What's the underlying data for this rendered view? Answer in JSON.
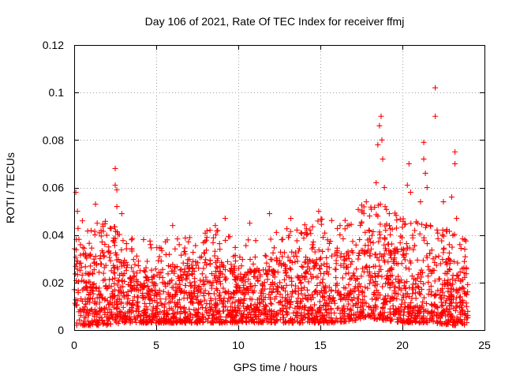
{
  "chart_data": {
    "type": "scatter",
    "title": "Day 106 of 2021, Rate Of TEC Index for receiver ffmj",
    "xlabel": "GPS time / hours",
    "ylabel": "ROTI / TECUs",
    "xlim": [
      0,
      25
    ],
    "ylim": [
      0,
      0.12
    ],
    "x_ticks": [
      "0",
      "5",
      "10",
      "15",
      "20",
      "25"
    ],
    "y_ticks": [
      "0",
      "0.02",
      "0.04",
      "0.06",
      "0.08",
      "0.1",
      "0.12"
    ],
    "x_tick_values": [
      0,
      5,
      10,
      15,
      20,
      25
    ],
    "y_tick_values": [
      0,
      0.02,
      0.04,
      0.06,
      0.08,
      0.1,
      0.12
    ],
    "grid": true,
    "marker": "+",
    "color": "#ff0000",
    "series": [
      {
        "name": "ROTI",
        "x_range": [
          0,
          24
        ],
        "description_points": [
          [
            0.1,
            0.058
          ],
          [
            0.2,
            0.05
          ],
          [
            0.5,
            0.046
          ],
          [
            1.3,
            0.053
          ],
          [
            1.4,
            0.045
          ],
          [
            2.5,
            0.068
          ],
          [
            2.5,
            0.061
          ],
          [
            2.6,
            0.059
          ],
          [
            2.6,
            0.052
          ],
          [
            2.9,
            0.049
          ],
          [
            3.5,
            0.038
          ],
          [
            6.0,
            0.044
          ],
          [
            8.6,
            0.044
          ],
          [
            9.2,
            0.047
          ],
          [
            10.7,
            0.045
          ],
          [
            11.9,
            0.049
          ],
          [
            13.2,
            0.047
          ],
          [
            14.9,
            0.05
          ],
          [
            16.2,
            0.044
          ],
          [
            17.5,
            0.045
          ],
          [
            17.8,
            0.054
          ],
          [
            18.0,
            0.048
          ],
          [
            18.4,
            0.062
          ],
          [
            18.5,
            0.078
          ],
          [
            18.6,
            0.086
          ],
          [
            18.7,
            0.09
          ],
          [
            18.75,
            0.08
          ],
          [
            18.8,
            0.072
          ],
          [
            18.9,
            0.06
          ],
          [
            19.2,
            0.049
          ],
          [
            20.3,
            0.061
          ],
          [
            20.4,
            0.07
          ],
          [
            20.5,
            0.058
          ],
          [
            21.1,
            0.054
          ],
          [
            21.3,
            0.079
          ],
          [
            21.3,
            0.072
          ],
          [
            21.4,
            0.066
          ],
          [
            21.5,
            0.06
          ],
          [
            21.7,
            0.044
          ],
          [
            22.0,
            0.102
          ],
          [
            22.0,
            0.09
          ],
          [
            22.5,
            0.054
          ],
          [
            23.0,
            0.056
          ],
          [
            23.2,
            0.075
          ],
          [
            23.2,
            0.07
          ],
          [
            23.3,
            0.047
          ],
          [
            23.5,
            0.036
          ]
        ],
        "envelope_hourly": [
          {
            "hour": 0,
            "low": 0.002,
            "high": 0.032
          },
          {
            "hour": 1,
            "low": 0.002,
            "high": 0.033
          },
          {
            "hour": 2,
            "low": 0.002,
            "high": 0.034
          },
          {
            "hour": 3,
            "low": 0.003,
            "high": 0.03
          },
          {
            "hour": 4,
            "low": 0.003,
            "high": 0.027
          },
          {
            "hour": 5,
            "low": 0.003,
            "high": 0.025
          },
          {
            "hour": 6,
            "low": 0.003,
            "high": 0.028
          },
          {
            "hour": 7,
            "low": 0.003,
            "high": 0.027
          },
          {
            "hour": 8,
            "low": 0.003,
            "high": 0.03
          },
          {
            "hour": 9,
            "low": 0.003,
            "high": 0.031
          },
          {
            "hour": 10,
            "low": 0.003,
            "high": 0.026
          },
          {
            "hour": 11,
            "low": 0.003,
            "high": 0.026
          },
          {
            "hour": 12,
            "low": 0.003,
            "high": 0.03
          },
          {
            "hour": 13,
            "low": 0.003,
            "high": 0.033
          },
          {
            "hour": 14,
            "low": 0.003,
            "high": 0.034
          },
          {
            "hour": 15,
            "low": 0.003,
            "high": 0.035
          },
          {
            "hour": 16,
            "low": 0.003,
            "high": 0.034
          },
          {
            "hour": 17,
            "low": 0.004,
            "high": 0.036
          },
          {
            "hour": 18,
            "low": 0.005,
            "high": 0.045
          },
          {
            "hour": 19,
            "low": 0.004,
            "high": 0.04
          },
          {
            "hour": 20,
            "low": 0.003,
            "high": 0.035
          },
          {
            "hour": 21,
            "low": 0.003,
            "high": 0.034
          },
          {
            "hour": 22,
            "low": 0.003,
            "high": 0.032
          },
          {
            "hour": 23,
            "low": 0.002,
            "high": 0.03
          },
          {
            "hour": 24,
            "low": 0.002,
            "high": 0.026
          }
        ]
      }
    ]
  }
}
